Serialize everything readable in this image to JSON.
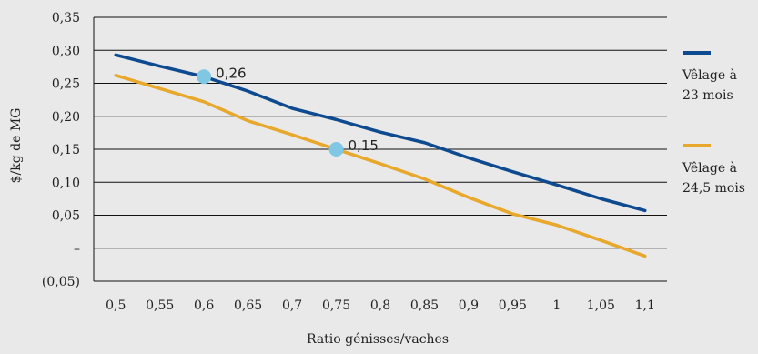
{
  "chart_data": {
    "type": "line",
    "x": [
      0.5,
      0.55,
      0.6,
      0.65,
      0.7,
      0.75,
      0.8,
      0.85,
      0.9,
      0.95,
      1.0,
      1.05,
      1.1
    ],
    "x_tick_labels": [
      "0,5",
      "0,55",
      "0,6",
      "0,65",
      "0,7",
      "0,75",
      "0,8",
      "0,85",
      "0,9",
      "0,95",
      "1",
      "1,05",
      "1,1"
    ],
    "y_tick_labels": [
      "(0,05)",
      "–",
      "0,05",
      "0,10",
      "0,15",
      "0,20",
      "0,25",
      "0,30",
      "0,35"
    ],
    "ylim": [
      -0.05,
      0.35
    ],
    "xlabel": "Ratio génisses/vaches",
    "ylabel": "$/kg de MG",
    "grid": "horizontal",
    "legend_position": "right",
    "series": [
      {
        "name": "Vêlage à 23 mois",
        "legend_lines": [
          "Vêlage à",
          "23 mois"
        ],
        "color": "#0e4a8f",
        "values": [
          0.293,
          0.276,
          0.26,
          0.238,
          0.212,
          0.195,
          0.176,
          0.16,
          0.137,
          0.116,
          0.096,
          0.075,
          0.057
        ]
      },
      {
        "name": "Vêlage à 24,5 mois",
        "legend_lines": [
          "Vêlage à",
          "24,5 mois"
        ],
        "color": "#e8a82b",
        "values": [
          0.262,
          0.242,
          0.222,
          0.193,
          0.172,
          0.15,
          0.128,
          0.105,
          0.077,
          0.052,
          0.035,
          0.012,
          -0.012
        ]
      }
    ],
    "annotations": [
      {
        "x": 0.6,
        "y": 0.26,
        "label": "0,26",
        "marker_color": "#7fc7e3"
      },
      {
        "x": 0.75,
        "y": 0.15,
        "label": "0,15",
        "marker_color": "#7fc7e3"
      }
    ]
  }
}
